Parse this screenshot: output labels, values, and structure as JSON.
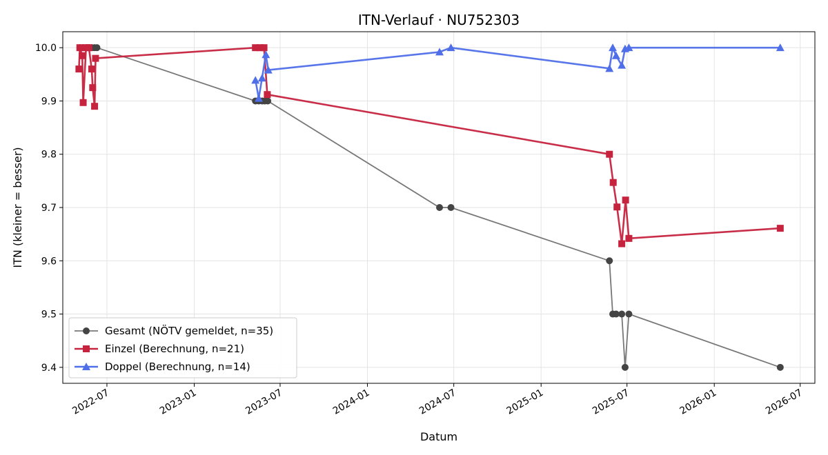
{
  "chart_data": {
    "type": "line",
    "title": "ITN-Verlauf · NU752303",
    "xlabel": "Datum",
    "ylabel": "ITN  (kleiner = besser)",
    "xlim": [
      "2022-03-30",
      "2026-08-01"
    ],
    "ylim": [
      9.37,
      10.03
    ],
    "grid": true,
    "legend_position": "lower-left",
    "x_ticks": [
      "2022-07",
      "2023-01",
      "2023-07",
      "2024-01",
      "2024-07",
      "2025-01",
      "2025-07",
      "2026-01",
      "2026-07"
    ],
    "y_ticks": [
      "9.4",
      "9.5",
      "9.6",
      "9.7",
      "9.8",
      "9.9",
      "10.0"
    ],
    "series": [
      {
        "name": "Gesamt (NÖTV gemeldet, n=35)",
        "color": "#777777",
        "marker_color": "#444444",
        "marker": "circle",
        "points": [
          [
            "2022-05-05",
            10.0
          ],
          [
            "2022-05-12",
            10.0
          ],
          [
            "2022-05-20",
            10.0
          ],
          [
            "2022-05-25",
            10.0
          ],
          [
            "2022-05-30",
            10.0
          ],
          [
            "2022-06-05",
            10.0
          ],
          [
            "2022-06-10",
            10.0
          ],
          [
            "2023-05-10",
            9.9
          ],
          [
            "2023-05-17",
            9.9
          ],
          [
            "2023-05-24",
            9.9
          ],
          [
            "2023-05-30",
            9.9
          ],
          [
            "2023-06-05",
            9.9
          ],
          [
            "2024-06-01",
            9.7
          ],
          [
            "2024-06-25",
            9.7
          ],
          [
            "2025-05-25",
            9.6
          ],
          [
            "2025-06-01",
            9.5
          ],
          [
            "2025-06-08",
            9.5
          ],
          [
            "2025-06-20",
            9.5
          ],
          [
            "2025-06-27",
            9.4
          ],
          [
            "2025-07-05",
            9.5
          ],
          [
            "2026-05-20",
            9.4
          ]
        ]
      },
      {
        "name": "Einzel (Berechnung, n=21)",
        "color": "#c6233f",
        "marker_color": "#c6233f",
        "marker": "square",
        "points": [
          [
            "2022-05-03",
            9.96
          ],
          [
            "2022-05-05",
            10.0
          ],
          [
            "2022-05-10",
            9.985
          ],
          [
            "2022-05-12",
            9.897
          ],
          [
            "2022-05-18",
            10.0
          ],
          [
            "2022-05-24",
            10.0
          ],
          [
            "2022-05-30",
            9.96
          ],
          [
            "2022-06-01",
            9.925
          ],
          [
            "2022-06-05",
            9.89
          ],
          [
            "2022-06-07",
            9.98
          ],
          [
            "2023-05-10",
            10.0
          ],
          [
            "2023-05-20",
            10.0
          ],
          [
            "2023-05-28",
            10.0
          ],
          [
            "2023-06-04",
            9.912
          ],
          [
            "2025-05-25",
            9.8
          ],
          [
            "2025-06-02",
            9.747
          ],
          [
            "2025-06-10",
            9.701
          ],
          [
            "2025-06-20",
            9.632
          ],
          [
            "2025-06-28",
            9.714
          ],
          [
            "2025-07-05",
            9.642
          ],
          [
            "2026-05-20",
            9.661
          ]
        ]
      },
      {
        "name": "Doppel (Berechnung, n=14)",
        "color": "#4f6fe8",
        "marker_color": "#4f6fe8",
        "marker": "triangle",
        "points": [
          [
            "2023-05-10",
            9.939
          ],
          [
            "2023-05-17",
            9.905
          ],
          [
            "2023-05-24",
            9.943
          ],
          [
            "2023-06-01",
            9.987
          ],
          [
            "2023-06-06",
            9.958
          ],
          [
            "2024-06-01",
            9.992
          ],
          [
            "2024-06-25",
            10.0
          ],
          [
            "2025-05-25",
            9.961
          ],
          [
            "2025-06-01",
            10.0
          ],
          [
            "2025-06-08",
            9.985
          ],
          [
            "2025-06-20",
            9.967
          ],
          [
            "2025-06-27",
            9.998
          ],
          [
            "2025-07-05",
            10.0
          ],
          [
            "2026-05-20",
            10.0
          ]
        ]
      }
    ]
  }
}
